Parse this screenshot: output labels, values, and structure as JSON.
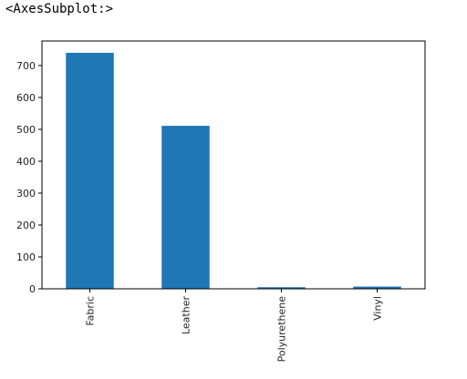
{
  "cell_output": {
    "repr_text": "<AxesSubplot:>"
  },
  "chart_data": {
    "type": "bar",
    "categories": [
      "Fabric",
      "Leather",
      "Polyurethene",
      "Vinyl"
    ],
    "values": [
      740,
      511,
      5,
      7
    ],
    "title": "",
    "xlabel": "",
    "ylabel": "",
    "ylim": [
      0,
      777
    ],
    "yticks": [
      0,
      100,
      200,
      300,
      400,
      500,
      600,
      700
    ],
    "grid": false,
    "legend": "none",
    "x_tick_rotation": "vertical",
    "colors": {
      "bar": "#1f77b4",
      "axes": "#000000",
      "text": "#222222"
    }
  }
}
